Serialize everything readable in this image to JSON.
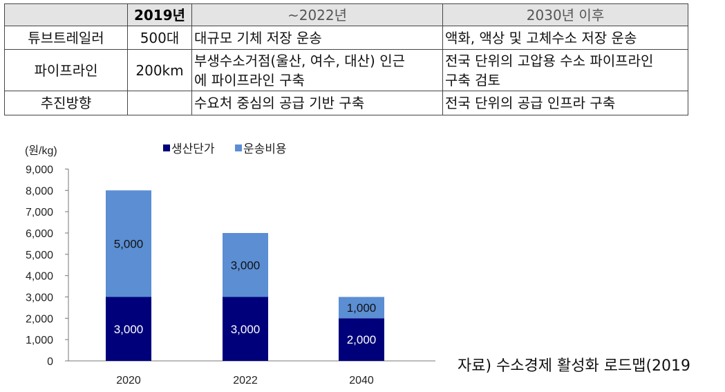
{
  "table": {
    "headers": [
      "",
      "2019년",
      "~2022년",
      "2030년 이후"
    ],
    "rows": [
      [
        "튜브트레일러",
        "500대",
        "대규모 기체 저장 운송",
        "액화, 액상 및 고체수소 저장 운송"
      ],
      [
        "파이프라인",
        "200km",
        "부생수소거점(울산, 여수, 대산) 인근\n에 파이프라인 구축",
        "전국 단위의 고압용 수소 파이프라인\n구축 검토"
      ],
      [
        "추진방향",
        "",
        "수요처 중심의 공급 기반 구축",
        "전국 단위의 공급 인프라 구축"
      ]
    ]
  },
  "chart_data": {
    "type": "bar",
    "stacked": true,
    "categories": [
      "2020",
      "2022",
      "2040"
    ],
    "series": [
      {
        "name": "생산단가",
        "values": [
          3000,
          3000,
          2000
        ],
        "color": "#00007a"
      },
      {
        "name": "운송비용",
        "values": [
          5000,
          3000,
          1000
        ],
        "color": "#5b8ed3"
      }
    ],
    "data_labels": [
      [
        "3,000",
        "3,000",
        "2,000"
      ],
      [
        "5,000",
        "3,000",
        "1,000"
      ]
    ],
    "ylabel": "(원/kg)",
    "ylim": [
      0,
      9000
    ],
    "yticks": [
      0,
      1000,
      2000,
      3000,
      4000,
      5000,
      6000,
      7000,
      8000,
      9000
    ],
    "ytick_labels": [
      "0",
      "1,000",
      "2,000",
      "3,000",
      "4,000",
      "5,000",
      "6,000",
      "7,000",
      "8,000",
      "9,000"
    ],
    "legend_position": "top",
    "grid": false
  },
  "source": "자료) 수소경제 활성화 로드맵(2019"
}
